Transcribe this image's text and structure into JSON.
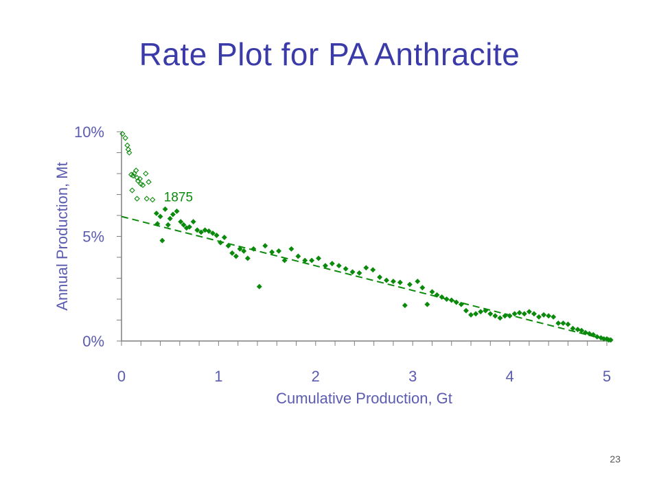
{
  "slide": {
    "title": "Rate Plot for PA Anthracite",
    "page_number": "23"
  },
  "colors": {
    "title": "#3a3aa8",
    "axis_text": "#5b5bb0",
    "axis_line": "#7f7f7f",
    "data": "#0a8a0a"
  },
  "chart_data": {
    "type": "scatter",
    "xlabel": "Cumulative Production, Gt",
    "ylabel": "Annual Production, Mt",
    "xlim": [
      0,
      5
    ],
    "ylim": [
      0,
      10
    ],
    "x_ticks": [
      0,
      1,
      2,
      3,
      4,
      5
    ],
    "y_ticks": [
      0,
      5,
      10
    ],
    "y_tick_labels": [
      "0%",
      "5%",
      "10%"
    ],
    "annotation": {
      "text": "1875",
      "x": 0.55,
      "y": 6.9
    },
    "trendline": {
      "style": "dashed",
      "points": [
        [
          0,
          5.95
        ],
        [
          5.05,
          0
        ]
      ]
    },
    "series": [
      {
        "marker": "open-diamond",
        "points": [
          [
            0.01,
            9.9
          ],
          [
            0.04,
            9.7
          ],
          [
            0.06,
            9.35
          ],
          [
            0.07,
            9.15
          ],
          [
            0.08,
            9.0
          ],
          [
            0.1,
            7.95
          ],
          [
            0.12,
            7.9
          ],
          [
            0.13,
            8.0
          ],
          [
            0.15,
            8.15
          ],
          [
            0.16,
            7.8
          ],
          [
            0.17,
            7.65
          ],
          [
            0.19,
            7.75
          ],
          [
            0.2,
            7.5
          ],
          [
            0.22,
            7.45
          ],
          [
            0.25,
            8.0
          ],
          [
            0.28,
            7.6
          ],
          [
            0.11,
            7.2
          ],
          [
            0.16,
            6.8
          ],
          [
            0.26,
            6.8
          ],
          [
            0.32,
            6.75
          ]
        ]
      },
      {
        "marker": "filled-diamond",
        "points": [
          [
            0.36,
            6.1
          ],
          [
            0.4,
            5.95
          ],
          [
            0.37,
            5.6
          ],
          [
            0.42,
            4.8
          ],
          [
            0.45,
            6.3
          ],
          [
            0.48,
            5.55
          ],
          [
            0.5,
            5.85
          ],
          [
            0.53,
            6.05
          ],
          [
            0.57,
            6.2
          ],
          [
            0.61,
            5.7
          ],
          [
            0.64,
            5.55
          ],
          [
            0.67,
            5.4
          ],
          [
            0.7,
            5.45
          ],
          [
            0.74,
            5.7
          ],
          [
            0.78,
            5.3
          ],
          [
            0.82,
            5.2
          ],
          [
            0.86,
            5.3
          ],
          [
            0.9,
            5.25
          ],
          [
            0.94,
            5.15
          ],
          [
            0.98,
            5.05
          ],
          [
            1.02,
            4.7
          ],
          [
            1.06,
            4.95
          ],
          [
            1.1,
            4.55
          ],
          [
            1.14,
            4.2
          ],
          [
            1.18,
            4.05
          ],
          [
            1.22,
            4.4
          ],
          [
            1.26,
            4.3
          ],
          [
            1.3,
            3.95
          ],
          [
            1.36,
            4.4
          ],
          [
            1.42,
            2.6
          ],
          [
            1.48,
            4.55
          ],
          [
            1.55,
            4.25
          ],
          [
            1.62,
            4.3
          ],
          [
            1.68,
            3.85
          ],
          [
            1.75,
            4.4
          ],
          [
            1.82,
            4.05
          ],
          [
            1.89,
            3.85
          ],
          [
            1.96,
            3.85
          ],
          [
            2.03,
            3.95
          ],
          [
            2.1,
            3.6
          ],
          [
            2.17,
            3.7
          ],
          [
            2.24,
            3.6
          ],
          [
            2.31,
            3.45
          ],
          [
            2.38,
            3.3
          ],
          [
            2.45,
            3.25
          ],
          [
            2.52,
            3.5
          ],
          [
            2.59,
            3.4
          ],
          [
            2.66,
            3.05
          ],
          [
            2.73,
            2.9
          ],
          [
            2.8,
            2.85
          ],
          [
            2.87,
            2.8
          ],
          [
            2.92,
            1.7
          ],
          [
            2.97,
            2.7
          ],
          [
            3.05,
            2.85
          ],
          [
            3.1,
            2.55
          ],
          [
            3.15,
            1.75
          ],
          [
            3.2,
            2.35
          ],
          [
            3.25,
            2.2
          ],
          [
            3.3,
            2.1
          ],
          [
            3.35,
            2.0
          ],
          [
            3.4,
            1.95
          ],
          [
            3.45,
            1.85
          ],
          [
            3.5,
            1.75
          ],
          [
            3.55,
            1.45
          ],
          [
            3.6,
            1.25
          ],
          [
            3.65,
            1.3
          ],
          [
            3.7,
            1.4
          ],
          [
            3.75,
            1.45
          ],
          [
            3.8,
            1.3
          ],
          [
            3.85,
            1.2
          ],
          [
            3.9,
            1.1
          ],
          [
            3.95,
            1.2
          ],
          [
            4.0,
            1.2
          ],
          [
            4.05,
            1.3
          ],
          [
            4.1,
            1.35
          ],
          [
            4.15,
            1.3
          ],
          [
            4.2,
            1.4
          ],
          [
            4.25,
            1.3
          ],
          [
            4.3,
            1.15
          ],
          [
            4.35,
            1.25
          ],
          [
            4.4,
            1.2
          ],
          [
            4.45,
            1.15
          ],
          [
            4.5,
            0.85
          ],
          [
            4.55,
            0.85
          ],
          [
            4.6,
            0.8
          ],
          [
            4.65,
            0.6
          ],
          [
            4.7,
            0.55
          ],
          [
            4.74,
            0.5
          ],
          [
            4.78,
            0.4
          ],
          [
            4.82,
            0.35
          ],
          [
            4.86,
            0.3
          ],
          [
            4.9,
            0.2
          ],
          [
            4.94,
            0.15
          ],
          [
            4.97,
            0.1
          ],
          [
            5.0,
            0.1
          ],
          [
            5.02,
            0.05
          ],
          [
            5.04,
            0.05
          ]
        ]
      }
    ]
  }
}
